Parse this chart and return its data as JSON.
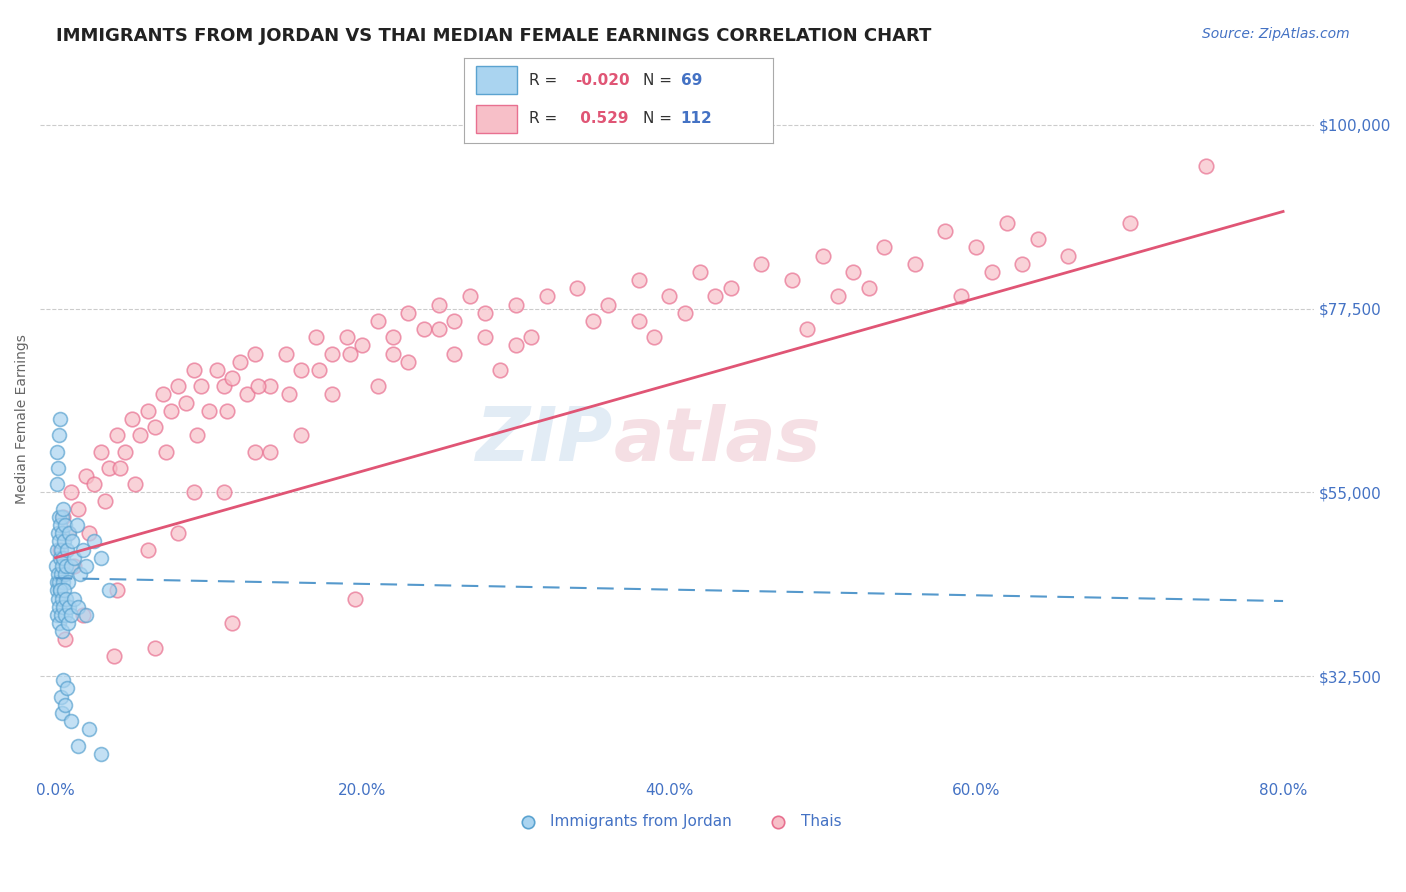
{
  "title": "IMMIGRANTS FROM JORDAN VS THAI MEDIAN FEMALE EARNINGS CORRELATION CHART",
  "source": "Source: ZipAtlas.com",
  "ylabel": "Median Female Earnings",
  "xlabel_ticks": [
    "0.0%",
    "20.0%",
    "40.0%",
    "60.0%",
    "80.0%"
  ],
  "xlabel_vals": [
    0.0,
    20.0,
    40.0,
    60.0,
    80.0
  ],
  "ytick_labels": [
    "$32,500",
    "$55,000",
    "$77,500",
    "$100,000"
  ],
  "ytick_vals": [
    32500,
    55000,
    77500,
    100000
  ],
  "ylim": [
    20000,
    108000
  ],
  "xlim": [
    -1.0,
    82.0
  ],
  "jordan_face_color": "#aad4f0",
  "jordan_edge_color": "#5ba3d0",
  "thai_face_color": "#f7bfc8",
  "thai_edge_color": "#e87090",
  "jordan_line_color": "#5599cc",
  "thai_line_color": "#e05575",
  "jordan_R": -0.02,
  "jordan_N": 69,
  "thai_R": 0.529,
  "thai_N": 112,
  "legend_jordan_label": "Immigrants from Jordan",
  "legend_thai_label": "Thais",
  "watermark": "ZIPAtlas",
  "background_color": "#ffffff",
  "grid_color": "#cccccc",
  "title_color": "#222222",
  "axis_label_color": "#4472c4",
  "r_value_color": "#e05575",
  "jordan_line_intercept": 44500,
  "jordan_line_slope": -35,
  "thai_line_intercept": 47000,
  "thai_line_slope": 530,
  "jordan_scatter_x": [
    0.05,
    0.08,
    0.1,
    0.12,
    0.15,
    0.18,
    0.2,
    0.22,
    0.25,
    0.28,
    0.3,
    0.32,
    0.35,
    0.38,
    0.4,
    0.42,
    0.45,
    0.48,
    0.5,
    0.52,
    0.55,
    0.6,
    0.65,
    0.7,
    0.75,
    0.8,
    0.9,
    1.0,
    1.1,
    1.2,
    1.4,
    1.6,
    1.8,
    2.0,
    2.5,
    3.0,
    0.1,
    0.15,
    0.2,
    0.25,
    0.3,
    0.35,
    0.4,
    0.45,
    0.5,
    0.55,
    0.6,
    0.7,
    0.8,
    0.9,
    1.0,
    1.2,
    1.5,
    2.0,
    3.5,
    0.08,
    0.12,
    0.18,
    0.22,
    0.28,
    0.35,
    0.42,
    0.5,
    0.6,
    0.75,
    1.0,
    1.5,
    2.2,
    3.0
  ],
  "jordan_scatter_y": [
    46000,
    44000,
    48000,
    43000,
    50000,
    45000,
    52000,
    44000,
    49000,
    47000,
    51000,
    43000,
    48000,
    45000,
    52000,
    46000,
    50000,
    44000,
    53000,
    47000,
    49000,
    45000,
    51000,
    46000,
    48000,
    44000,
    50000,
    46000,
    49000,
    47000,
    51000,
    45000,
    48000,
    46000,
    49000,
    47000,
    40000,
    42000,
    39000,
    41000,
    43000,
    40000,
    42000,
    38000,
    41000,
    43000,
    40000,
    42000,
    39000,
    41000,
    40000,
    42000,
    41000,
    40000,
    43000,
    56000,
    60000,
    58000,
    62000,
    64000,
    30000,
    28000,
    32000,
    29000,
    31000,
    27000,
    24000,
    26000,
    23000
  ],
  "thai_scatter_x": [
    0.3,
    0.5,
    0.8,
    1.0,
    1.5,
    2.0,
    2.5,
    3.0,
    3.5,
    4.0,
    4.5,
    5.0,
    5.5,
    6.0,
    6.5,
    7.0,
    7.5,
    8.0,
    8.5,
    9.0,
    9.5,
    10.0,
    10.5,
    11.0,
    11.5,
    12.0,
    12.5,
    13.0,
    14.0,
    15.0,
    16.0,
    17.0,
    18.0,
    19.0,
    20.0,
    21.0,
    22.0,
    23.0,
    24.0,
    25.0,
    26.0,
    27.0,
    28.0,
    30.0,
    32.0,
    34.0,
    36.0,
    38.0,
    40.0,
    42.0,
    44.0,
    46.0,
    48.0,
    50.0,
    52.0,
    54.0,
    56.0,
    58.0,
    60.0,
    62.0,
    64.0,
    66.0,
    70.0,
    75.0,
    1.2,
    2.2,
    3.2,
    4.2,
    5.2,
    7.2,
    9.2,
    11.2,
    13.2,
    15.2,
    17.2,
    19.2,
    22.0,
    25.0,
    30.0,
    35.0,
    8.0,
    13.0,
    18.0,
    23.0,
    28.0,
    38.0,
    43.0,
    53.0,
    63.0,
    6.0,
    11.0,
    16.0,
    21.0,
    26.0,
    31.0,
    41.0,
    51.0,
    61.0,
    4.0,
    9.0,
    14.0,
    29.0,
    39.0,
    49.0,
    59.0,
    0.6,
    1.8,
    3.8,
    6.5,
    11.5,
    19.5
  ],
  "thai_scatter_y": [
    48000,
    52000,
    50000,
    55000,
    53000,
    57000,
    56000,
    60000,
    58000,
    62000,
    60000,
    64000,
    62000,
    65000,
    63000,
    67000,
    65000,
    68000,
    66000,
    70000,
    68000,
    65000,
    70000,
    68000,
    69000,
    71000,
    67000,
    72000,
    68000,
    72000,
    70000,
    74000,
    72000,
    74000,
    73000,
    76000,
    74000,
    77000,
    75000,
    78000,
    76000,
    79000,
    77000,
    78000,
    79000,
    80000,
    78000,
    81000,
    79000,
    82000,
    80000,
    83000,
    81000,
    84000,
    82000,
    85000,
    83000,
    87000,
    85000,
    88000,
    86000,
    84000,
    88000,
    95000,
    46000,
    50000,
    54000,
    58000,
    56000,
    60000,
    62000,
    65000,
    68000,
    67000,
    70000,
    72000,
    72000,
    75000,
    73000,
    76000,
    50000,
    60000,
    67000,
    71000,
    74000,
    76000,
    79000,
    80000,
    83000,
    48000,
    55000,
    62000,
    68000,
    72000,
    74000,
    77000,
    79000,
    82000,
    43000,
    55000,
    60000,
    70000,
    74000,
    75000,
    79000,
    37000,
    40000,
    35000,
    36000,
    39000,
    42000
  ],
  "title_fontsize": 13,
  "source_fontsize": 10,
  "ylabel_fontsize": 10,
  "tick_fontsize": 11,
  "legend_fontsize": 11
}
